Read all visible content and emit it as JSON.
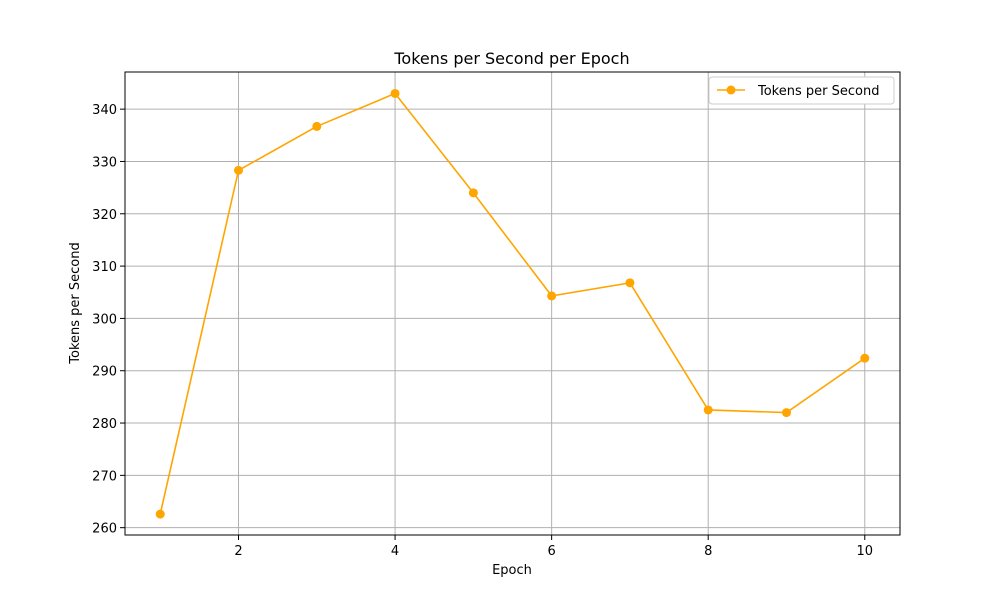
{
  "chart_data": {
    "type": "line",
    "title": "Tokens per Second per Epoch",
    "xlabel": "Epoch",
    "ylabel": "Tokens per Second",
    "x": [
      1,
      2,
      3,
      4,
      5,
      6,
      7,
      8,
      9,
      10
    ],
    "series": [
      {
        "name": "Tokens per Second",
        "color": "#ffa500",
        "marker": "circle",
        "values": [
          262.6,
          328.3,
          336.7,
          343.0,
          324.0,
          304.3,
          306.8,
          282.5,
          282.0,
          292.4
        ]
      }
    ],
    "xlim": [
      0.55,
      10.45
    ],
    "ylim": [
      258.6,
      347.1
    ],
    "xticks": [
      2,
      4,
      6,
      8,
      10
    ],
    "yticks": [
      260,
      270,
      280,
      290,
      300,
      310,
      320,
      330,
      340
    ],
    "grid": true,
    "legend_position": "top-right"
  }
}
